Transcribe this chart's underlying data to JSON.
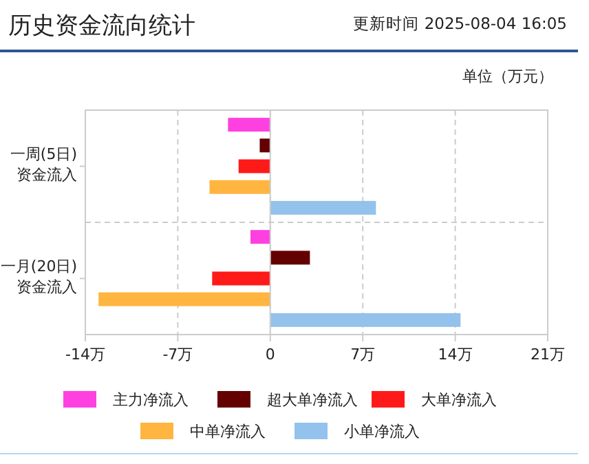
{
  "chart_data": {
    "type": "bar",
    "orientation": "horizontal",
    "title": "历史资金流向统计",
    "subtitle": "更新时间 2025-08-04 16:05",
    "annotations": [
      "单位（万元）"
    ],
    "categories": [
      "一周(5日)\n资金流入",
      "一月(20日)\n资金流入"
    ],
    "series": [
      {
        "name": "主力净流入",
        "color": "#ff40e0",
        "values": [
          -3.2,
          -1.5
        ]
      },
      {
        "name": "超大单净流入",
        "color": "#640000",
        "values": [
          -0.8,
          3
        ]
      },
      {
        "name": "大单净流入",
        "color": "#ff1a1a",
        "values": [
          -2.4,
          -4.4
        ]
      },
      {
        "name": "中单净流入",
        "color": "#ffb540",
        "values": [
          -4.6,
          -13
        ]
      },
      {
        "name": "小单净流入",
        "color": "#93c2ec",
        "values": [
          8,
          14.4
        ]
      }
    ],
    "xlim": [
      -14,
      21
    ],
    "xticks": [
      {
        "value": -14,
        "label": "-14万"
      },
      {
        "value": -7,
        "label": "-7万"
      },
      0,
      {
        "value": 7,
        "label": "7万"
      },
      {
        "value": 14,
        "label": "14万"
      },
      {
        "value": 21,
        "label": "21万"
      }
    ],
    "grid": true,
    "legend": "bottom"
  }
}
